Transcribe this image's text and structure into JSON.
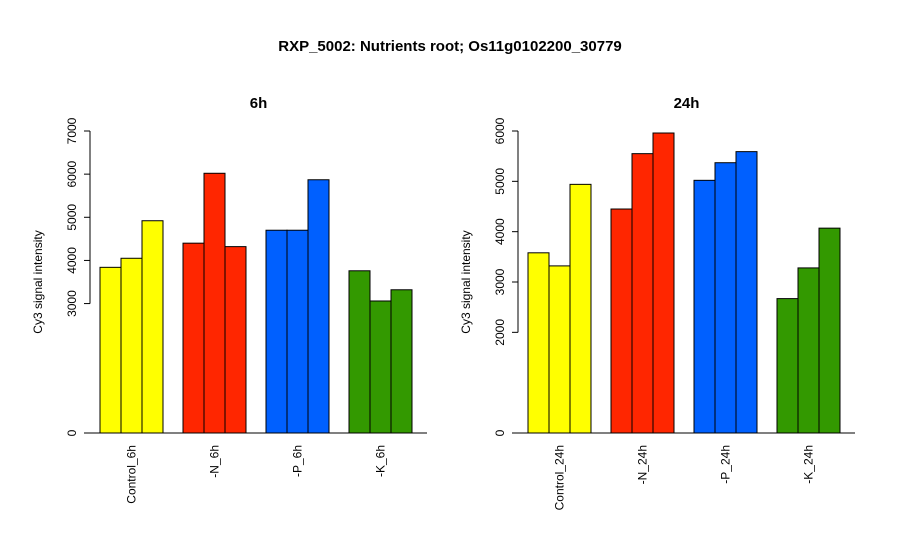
{
  "title": "RXP_5002: Nutrients root; Os11g0102200_30779",
  "colors": {
    "Control": "#FFFF00",
    "N": "#FF2600",
    "P": "#0060FF",
    "K": "#339900"
  },
  "chart_data": [
    {
      "type": "bar",
      "title": "6h",
      "ylabel": "Cy3 signal intensity",
      "ylim": [
        0,
        7000
      ],
      "yticks": [
        "0",
        "3000",
        "4000",
        "5000",
        "6000",
        "7000"
      ],
      "categories": [
        "Control_6h",
        "-N_6h",
        "-P_6h",
        "-K_6h"
      ],
      "groups": [
        {
          "category": "Control_6h",
          "color_key": "Control",
          "values": [
            3840,
            4050,
            4920
          ]
        },
        {
          "category": "-N_6h",
          "color_key": "N",
          "values": [
            4400,
            6020,
            4320
          ]
        },
        {
          "category": "-P_6h",
          "color_key": "P",
          "values": [
            4700,
            4700,
            5870
          ]
        },
        {
          "category": "-K_6h",
          "color_key": "K",
          "values": [
            3760,
            3060,
            3320
          ]
        }
      ]
    },
    {
      "type": "bar",
      "title": "24h",
      "ylabel": "Cy3 signal intensity",
      "ylim": [
        0,
        6000
      ],
      "yticks": [
        "0",
        "2000",
        "3000",
        "4000",
        "5000",
        "6000"
      ],
      "categories": [
        "Control_24h",
        "-N_24h",
        "-P_24h",
        "-K_24h"
      ],
      "groups": [
        {
          "category": "Control_24h",
          "color_key": "Control",
          "values": [
            3580,
            3320,
            4940
          ]
        },
        {
          "category": "-N_24h",
          "color_key": "N",
          "values": [
            4450,
            5550,
            5960
          ]
        },
        {
          "category": "-P_24h",
          "color_key": "P",
          "values": [
            5020,
            5370,
            5590
          ]
        },
        {
          "category": "-K_24h",
          "color_key": "K",
          "values": [
            2670,
            3280,
            4070
          ]
        }
      ]
    }
  ]
}
